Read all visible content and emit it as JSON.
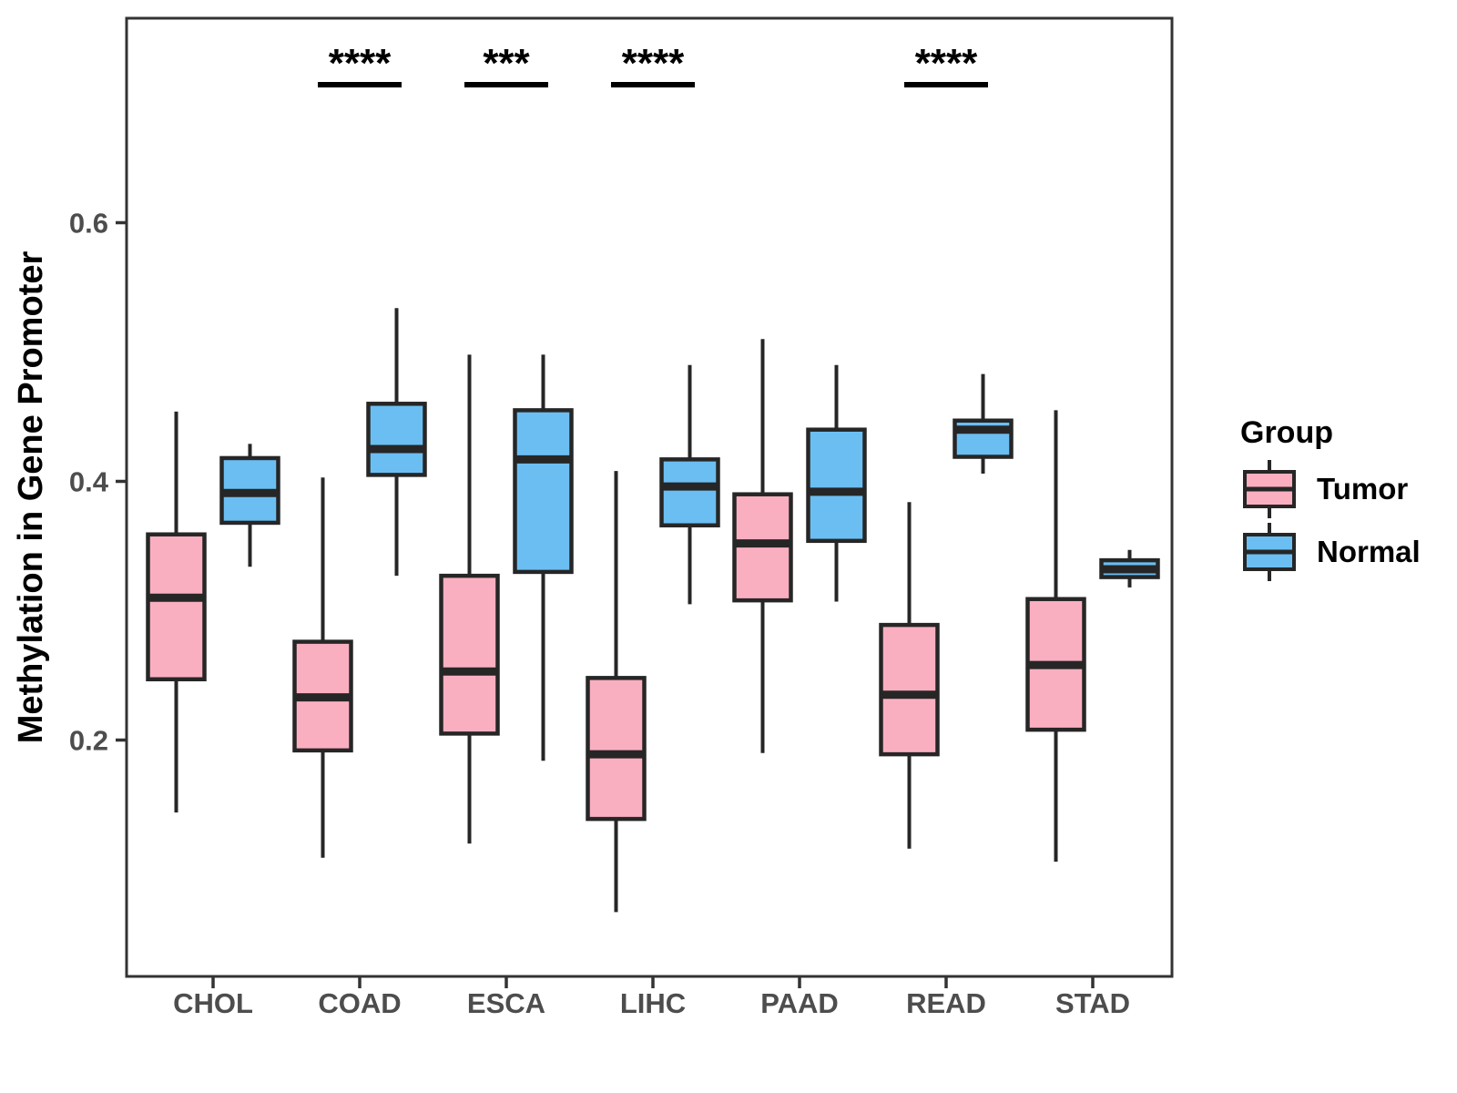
{
  "chart_data": {
    "type": "boxplot",
    "title": "",
    "y_axis": {
      "label": "Methylation in Gene Promoter",
      "tick_labels": [
        "0.2",
        "0.4",
        "0.6"
      ],
      "tick_values": [
        0.2,
        0.4,
        0.6
      ],
      "range": [
        0.06,
        0.76
      ],
      "grid": "off"
    },
    "x_axis": {
      "categories": [
        "CHOL",
        "COAD",
        "ESCA",
        "LIHC",
        "PAAD",
        "READ",
        "STAD"
      ]
    },
    "legend": {
      "title": "Group",
      "position": "right",
      "entries": [
        {
          "label": "Tumor",
          "color": "#FAAFC0"
        },
        {
          "label": "Normal",
          "color": "#6BBEF2"
        }
      ]
    },
    "significance": [
      {
        "category": "COAD",
        "stars": "****"
      },
      {
        "category": "ESCA",
        "stars": "***"
      },
      {
        "category": "LIHC",
        "stars": "****"
      },
      {
        "category": "READ",
        "stars": "****"
      }
    ],
    "series": [
      {
        "name": "Tumor",
        "color": "#FAAFC0",
        "stats": [
          {
            "category": "CHOL",
            "min": 0.144,
            "q1": 0.247,
            "median": 0.31,
            "q3": 0.359,
            "max": 0.454
          },
          {
            "category": "COAD",
            "min": 0.109,
            "q1": 0.192,
            "median": 0.233,
            "q3": 0.276,
            "max": 0.403
          },
          {
            "category": "ESCA",
            "min": 0.12,
            "q1": 0.205,
            "median": 0.253,
            "q3": 0.327,
            "max": 0.498
          },
          {
            "category": "LIHC",
            "min": 0.067,
            "q1": 0.139,
            "median": 0.189,
            "q3": 0.248,
            "max": 0.408
          },
          {
            "category": "PAAD",
            "min": 0.19,
            "q1": 0.308,
            "median": 0.352,
            "q3": 0.39,
            "max": 0.51
          },
          {
            "category": "READ",
            "min": 0.116,
            "q1": 0.189,
            "median": 0.235,
            "q3": 0.289,
            "max": 0.384
          },
          {
            "category": "STAD",
            "min": 0.106,
            "q1": 0.208,
            "median": 0.258,
            "q3": 0.309,
            "max": 0.455
          }
        ]
      },
      {
        "name": "Normal",
        "color": "#6BBEF2",
        "stats": [
          {
            "category": "CHOL",
            "min": 0.334,
            "q1": 0.368,
            "median": 0.391,
            "q3": 0.418,
            "max": 0.429
          },
          {
            "category": "COAD",
            "min": 0.327,
            "q1": 0.405,
            "median": 0.425,
            "q3": 0.46,
            "max": 0.534
          },
          {
            "category": "ESCA",
            "min": 0.184,
            "q1": 0.33,
            "median": 0.417,
            "q3": 0.455,
            "max": 0.498
          },
          {
            "category": "LIHC",
            "min": 0.305,
            "q1": 0.366,
            "median": 0.396,
            "q3": 0.417,
            "max": 0.49
          },
          {
            "category": "PAAD",
            "min": 0.307,
            "q1": 0.354,
            "median": 0.392,
            "q3": 0.44,
            "max": 0.49
          },
          {
            "category": "READ",
            "min": 0.406,
            "q1": 0.419,
            "median": 0.44,
            "q3": 0.447,
            "max": 0.483
          },
          {
            "category": "STAD",
            "min": 0.318,
            "q1": 0.326,
            "median": 0.332,
            "q3": 0.339,
            "max": 0.347
          }
        ]
      }
    ],
    "colors": {
      "box_stroke": "#262626",
      "panel_border": "#333333",
      "axis_text": "#4d4d4d",
      "annotation": "#000000"
    }
  }
}
